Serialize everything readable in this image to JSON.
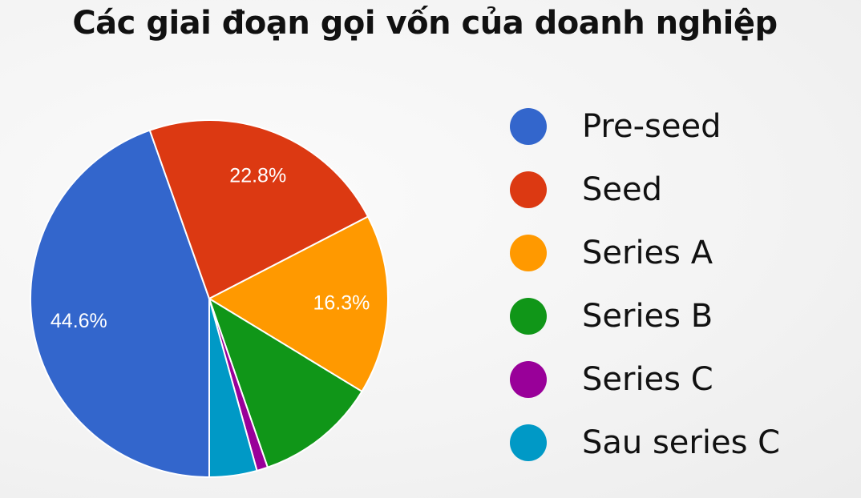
{
  "chart_data": {
    "type": "pie",
    "title": "Các giai đoạn gọi vốn của doanh nghiệp",
    "categories": [
      "Pre-seed",
      "Seed",
      "Series A",
      "Series B",
      "Series C",
      "Sau series C"
    ],
    "values": [
      44.6,
      22.8,
      16.3,
      11.0,
      1.0,
      4.3
    ],
    "value_labels": [
      "44.6%",
      "22.8%",
      "16.3%",
      "",
      "",
      ""
    ],
    "colors": [
      "#3366cc",
      "#dc3912",
      "#ff9900",
      "#109618",
      "#990099",
      "#0099c6"
    ],
    "legend_position": "right"
  }
}
